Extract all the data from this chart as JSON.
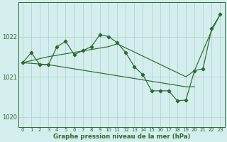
{
  "line_A": {
    "x": [
      0,
      2,
      3,
      10,
      11,
      19,
      20,
      22,
      23
    ],
    "y": [
      1021.35,
      1021.45,
      1021.5,
      1021.75,
      1021.82,
      1021.0,
      1021.15,
      1022.15,
      1022.55
    ]
  },
  "line_B": {
    "x": [
      0,
      1,
      2,
      3,
      4,
      5,
      6,
      7,
      8,
      9,
      10,
      11,
      12,
      13,
      14,
      15,
      16,
      17,
      18,
      19,
      20,
      21,
      22,
      23
    ],
    "y": [
      1021.35,
      1021.6,
      1021.3,
      1021.3,
      1021.75,
      1021.88,
      1021.55,
      1021.65,
      1021.75,
      1022.05,
      1022.0,
      1021.85,
      1021.6,
      1021.25,
      1021.05,
      1020.65,
      1020.65,
      1020.65,
      1020.4,
      1020.42,
      1021.15,
      1021.2,
      1022.2,
      1022.55
    ]
  },
  "line_C": {
    "x": [
      0,
      3,
      19,
      20
    ],
    "y": [
      1021.35,
      1021.3,
      1020.75,
      1020.75
    ]
  },
  "bg_color": "#d4eeee",
  "line_color": "#2d6a2d",
  "grid_color": "#aacece",
  "xlabel": "Graphe pression niveau de la mer (hPa)",
  "ylim": [
    1019.75,
    1022.85
  ],
  "yticks": [
    1020,
    1021,
    1022
  ],
  "xticks": [
    0,
    1,
    2,
    3,
    4,
    5,
    6,
    7,
    8,
    9,
    10,
    11,
    12,
    13,
    14,
    15,
    16,
    17,
    18,
    19,
    20,
    21,
    22,
    23
  ]
}
